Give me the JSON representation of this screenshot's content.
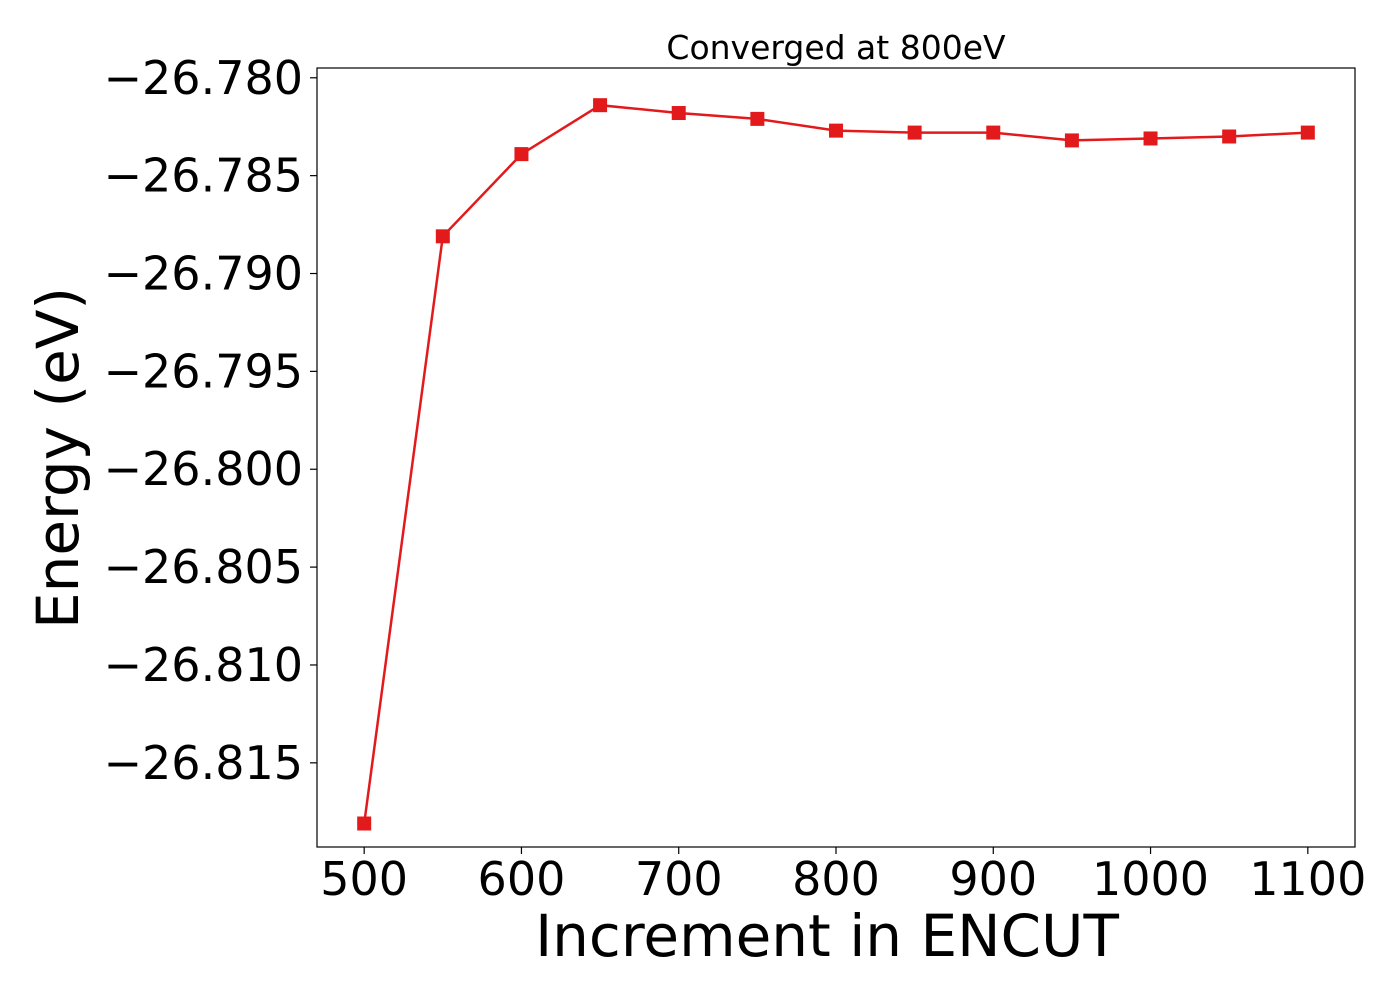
{
  "chart_data": {
    "type": "line",
    "title": "Converged at 800eV",
    "xlabel": "Increment in ENCUT",
    "ylabel": "Energy (eV)",
    "xlim": [
      470,
      1130
    ],
    "ylim": [
      -26.8193,
      -26.7795
    ],
    "xticks": [
      500,
      600,
      700,
      800,
      900,
      1000,
      1100
    ],
    "xtick_labels": [
      "500",
      "600",
      "700",
      "800",
      "900",
      "1000",
      "1100"
    ],
    "yticks": [
      -26.78,
      -26.785,
      -26.79,
      -26.795,
      -26.8,
      -26.805,
      -26.81,
      -26.815
    ],
    "ytick_labels": [
      "−26.780",
      "−26.785",
      "−26.790",
      "−26.795",
      "−26.800",
      "−26.805",
      "−26.810",
      "−26.815"
    ],
    "grid": false,
    "series": [
      {
        "color": "#e31a1c",
        "marker": "square",
        "x": [
          500,
          550,
          600,
          650,
          700,
          750,
          800,
          850,
          900,
          950,
          1000,
          1050,
          1100
        ],
        "y": [
          -26.8181,
          -26.7881,
          -26.7839,
          -26.7814,
          -26.7818,
          -26.7821,
          -26.7827,
          -26.7828,
          -26.7828,
          -26.7832,
          -26.7831,
          -26.783,
          -26.7828
        ]
      }
    ]
  }
}
